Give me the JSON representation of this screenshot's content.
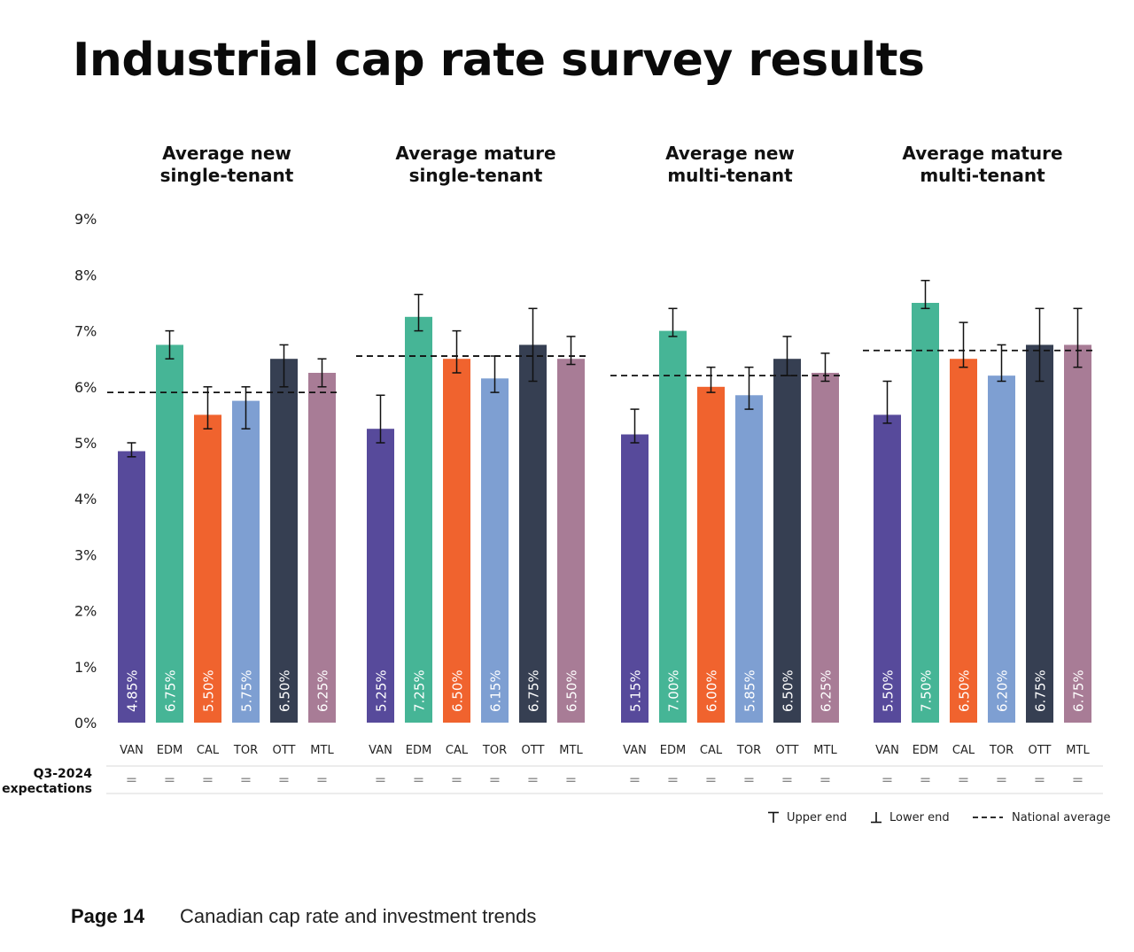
{
  "title": "Industrial cap rate survey results",
  "footer": {
    "page": "Page 14",
    "text": "Canadian cap rate and investment trends"
  },
  "expectations": {
    "label_line1": "Q3-2024",
    "label_line2": "expectations",
    "symbol": "="
  },
  "legend": {
    "upper": "Upper end",
    "lower": "Lower end",
    "national": "National average"
  },
  "colors": {
    "VAN": "#574a9b",
    "EDM": "#46b596",
    "CAL": "#f0632e",
    "TOR": "#7e9fd2",
    "OTT": "#363f52",
    "MTL": "#a87c96",
    "gridline": "#cccccc"
  },
  "chart_data": {
    "type": "bar",
    "yticks": [
      "0%",
      "1%",
      "2%",
      "3%",
      "4%",
      "5%",
      "6%",
      "7%",
      "8%",
      "9%"
    ],
    "ylim": [
      0,
      9
    ],
    "groups": [
      {
        "title_line1": "Average new",
        "title_line2": "single-tenant",
        "national_average": 5.9,
        "bars": [
          {
            "city": "VAN",
            "value": 4.85,
            "label": "4.85%",
            "low": 4.75,
            "high": 5.0,
            "expectation": "="
          },
          {
            "city": "EDM",
            "value": 6.75,
            "label": "6.75%",
            "low": 6.5,
            "high": 7.0,
            "expectation": "="
          },
          {
            "city": "CAL",
            "value": 5.5,
            "label": "5.50%",
            "low": 5.25,
            "high": 6.0,
            "expectation": "="
          },
          {
            "city": "TOR",
            "value": 5.75,
            "label": "5.75%",
            "low": 5.25,
            "high": 6.0,
            "expectation": "="
          },
          {
            "city": "OTT",
            "value": 6.5,
            "label": "6.50%",
            "low": 6.0,
            "high": 6.75,
            "expectation": "="
          },
          {
            "city": "MTL",
            "value": 6.25,
            "label": "6.25%",
            "low": 6.0,
            "high": 6.5,
            "expectation": "="
          }
        ]
      },
      {
        "title_line1": "Average mature",
        "title_line2": "single-tenant",
        "national_average": 6.55,
        "bars": [
          {
            "city": "VAN",
            "value": 5.25,
            "label": "5.25%",
            "low": 5.0,
            "high": 5.85,
            "expectation": "="
          },
          {
            "city": "EDM",
            "value": 7.25,
            "label": "7.25%",
            "low": 7.0,
            "high": 7.65,
            "expectation": "="
          },
          {
            "city": "CAL",
            "value": 6.5,
            "label": "6.50%",
            "low": 6.25,
            "high": 7.0,
            "expectation": "="
          },
          {
            "city": "TOR",
            "value": 6.15,
            "label": "6.15%",
            "low": 5.9,
            "high": 6.55,
            "expectation": "="
          },
          {
            "city": "OTT",
            "value": 6.75,
            "label": "6.75%",
            "low": 6.1,
            "high": 7.4,
            "expectation": "="
          },
          {
            "city": "MTL",
            "value": 6.5,
            "label": "6.50%",
            "low": 6.4,
            "high": 6.9,
            "expectation": "="
          }
        ]
      },
      {
        "title_line1": "Average new",
        "title_line2": "multi-tenant",
        "national_average": 6.2,
        "bars": [
          {
            "city": "VAN",
            "value": 5.15,
            "label": "5.15%",
            "low": 5.0,
            "high": 5.6,
            "expectation": "="
          },
          {
            "city": "EDM",
            "value": 7.0,
            "label": "7.00%",
            "low": 6.9,
            "high": 7.4,
            "expectation": "="
          },
          {
            "city": "CAL",
            "value": 6.0,
            "label": "6.00%",
            "low": 5.9,
            "high": 6.35,
            "expectation": "="
          },
          {
            "city": "TOR",
            "value": 5.85,
            "label": "5.85%",
            "low": 5.6,
            "high": 6.35,
            "expectation": "="
          },
          {
            "city": "OTT",
            "value": 6.5,
            "label": "6.50%",
            "low": 6.2,
            "high": 6.9,
            "expectation": "="
          },
          {
            "city": "MTL",
            "value": 6.25,
            "label": "6.25%",
            "low": 6.1,
            "high": 6.6,
            "expectation": "="
          }
        ]
      },
      {
        "title_line1": "Average mature",
        "title_line2": "multi-tenant",
        "national_average": 6.65,
        "bars": [
          {
            "city": "VAN",
            "value": 5.5,
            "label": "5.50%",
            "low": 5.35,
            "high": 6.1,
            "expectation": "="
          },
          {
            "city": "EDM",
            "value": 7.5,
            "label": "7.50%",
            "low": 7.4,
            "high": 7.9,
            "expectation": "="
          },
          {
            "city": "CAL",
            "value": 6.5,
            "label": "6.50%",
            "low": 6.35,
            "high": 7.15,
            "expectation": "="
          },
          {
            "city": "TOR",
            "value": 6.2,
            "label": "6.20%",
            "low": 6.1,
            "high": 6.75,
            "expectation": "="
          },
          {
            "city": "OTT",
            "value": 6.75,
            "label": "6.75%",
            "low": 6.1,
            "high": 7.4,
            "expectation": "="
          },
          {
            "city": "MTL",
            "value": 6.75,
            "label": "6.75%",
            "low": 6.35,
            "high": 7.4,
            "expectation": "="
          }
        ]
      }
    ]
  }
}
